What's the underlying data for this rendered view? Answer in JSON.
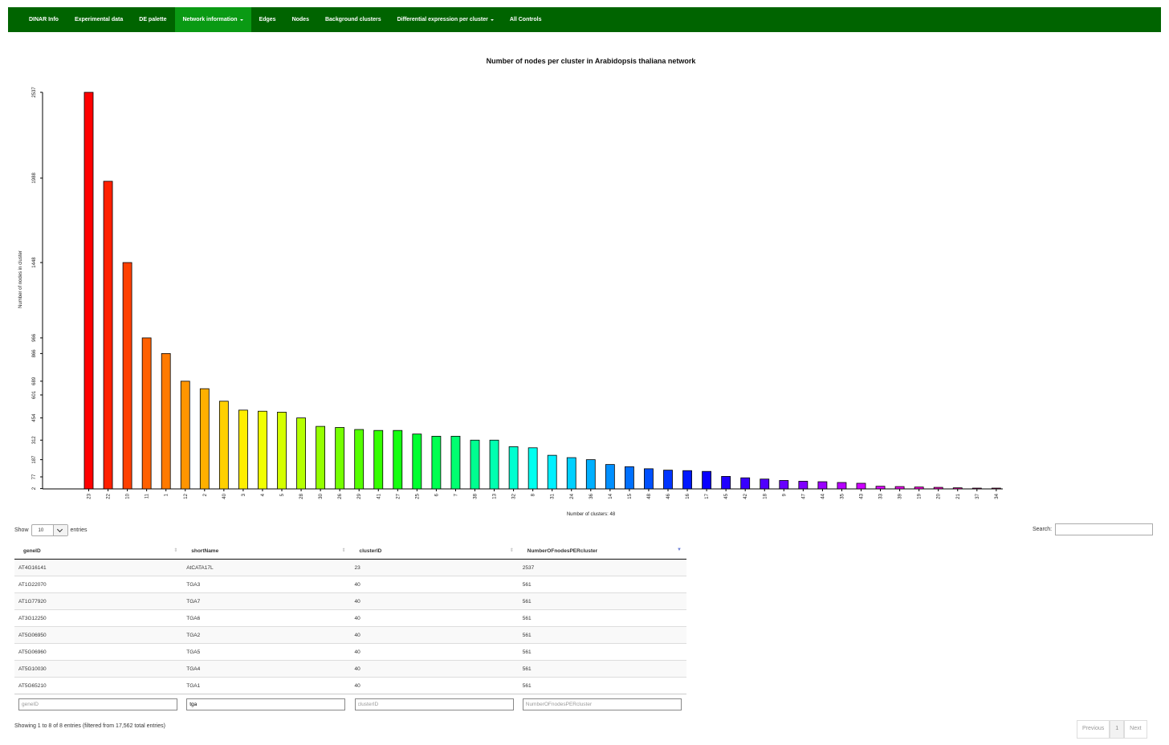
{
  "nav": {
    "items": [
      {
        "label": "DINAR Info",
        "dropdown": false,
        "active": false
      },
      {
        "label": "Experimental data",
        "dropdown": false,
        "active": false
      },
      {
        "label": "DE palette",
        "dropdown": false,
        "active": false
      },
      {
        "label": "Network information",
        "dropdown": true,
        "active": true
      },
      {
        "label": "Edges",
        "dropdown": false,
        "active": false
      },
      {
        "label": "Nodes",
        "dropdown": false,
        "active": false
      },
      {
        "label": "Background clusters",
        "dropdown": false,
        "active": false
      },
      {
        "label": "Differential expression per cluster",
        "dropdown": true,
        "active": false
      },
      {
        "label": "All Controls",
        "dropdown": false,
        "active": false
      }
    ]
  },
  "chart_data": {
    "type": "bar",
    "title": "Number of nodes per cluster in Arabidopsis thaliana network",
    "xlabel": "Number of clusters: 48",
    "ylabel": "Number of nodes in cluster",
    "y_tick_labels": [
      "2",
      "77",
      "187",
      "312",
      "454",
      "601",
      "689",
      "866",
      "966",
      "1448",
      "1988",
      "2537"
    ],
    "ylim": [
      0,
      2537
    ],
    "categories": [
      "23",
      "22",
      "10",
      "11",
      "1",
      "12",
      "2",
      "40",
      "3",
      "4",
      "5",
      "28",
      "30",
      "26",
      "29",
      "41",
      "27",
      "25",
      "6",
      "7",
      "38",
      "13",
      "32",
      "8",
      "31",
      "24",
      "36",
      "14",
      "15",
      "48",
      "46",
      "16",
      "17",
      "45",
      "42",
      "18",
      "9",
      "47",
      "44",
      "35",
      "43",
      "33",
      "39",
      "19",
      "20",
      "21",
      "37",
      "34"
    ],
    "values": [
      2537,
      1968,
      1448,
      966,
      866,
      689,
      641,
      561,
      504,
      497,
      491,
      454,
      400,
      393,
      380,
      374,
      374,
      351,
      337,
      337,
      312,
      312,
      270,
      263,
      215,
      200,
      187,
      156,
      142,
      129,
      120,
      117,
      112,
      80,
      71,
      63,
      54,
      49,
      46,
      41,
      36,
      17,
      15,
      12,
      10,
      7,
      5,
      5
    ],
    "colors": [
      "#ff0000",
      "#ff2000",
      "#ff4000",
      "#ff6000",
      "#ff7a00",
      "#ff9500",
      "#ffb000",
      "#ffd000",
      "#ffee00",
      "#f0ff00",
      "#d4ff00",
      "#b5ff00",
      "#95ff00",
      "#75ff00",
      "#55ff00",
      "#35ff00",
      "#15ff10",
      "#00ff30",
      "#00ff50",
      "#00ff70",
      "#00ff90",
      "#00ffb0",
      "#00ffd0",
      "#00fff0",
      "#00f0ff",
      "#00d0ff",
      "#00b0ff",
      "#0090ff",
      "#0070ff",
      "#0050ff",
      "#0035ff",
      "#0018ff",
      "#0800ff",
      "#2000ff",
      "#3800ff",
      "#5000ff",
      "#6800ff",
      "#8000ff",
      "#9a00ff",
      "#b500ff",
      "#cc00ff",
      "#e000ff",
      "#f000f0",
      "#ff00e0",
      "#ff00cc",
      "#ff00b5",
      "#ff009a",
      "#ff0080"
    ],
    "grid": false,
    "legend": "none"
  },
  "table_controls": {
    "show_label": "Show",
    "page_size": "10",
    "entries_label": "entries",
    "search_label": "Search:"
  },
  "table": {
    "columns": [
      "geneID",
      "shortName",
      "clusterID",
      "NumberOFnodesPERcluster"
    ],
    "rows": [
      [
        "AT4G16141",
        "AtCATA17L",
        "23",
        "2537"
      ],
      [
        "AT1G22070",
        "TGA3",
        "40",
        "561"
      ],
      [
        "AT1G77920",
        "TGA7",
        "40",
        "561"
      ],
      [
        "AT3G12250",
        "TGA6",
        "40",
        "561"
      ],
      [
        "AT5G06950",
        "TGA2",
        "40",
        "561"
      ],
      [
        "AT5G06960",
        "TGA5",
        "40",
        "561"
      ],
      [
        "AT5G10030",
        "TGA4",
        "40",
        "561"
      ],
      [
        "AT5G65210",
        "TGA1",
        "40",
        "561"
      ]
    ],
    "filters": [
      {
        "placeholder": "geneID",
        "value": ""
      },
      {
        "placeholder": "shortName",
        "value": "tga"
      },
      {
        "placeholder": "clusterID",
        "value": ""
      },
      {
        "placeholder": "NumberOFnodesPERcluster",
        "value": ""
      }
    ]
  },
  "footer": {
    "info": "Showing 1 to 8 of 8 entries (filtered from 17,562 total entries)",
    "previous": "Previous",
    "page": "1",
    "next": "Next"
  }
}
